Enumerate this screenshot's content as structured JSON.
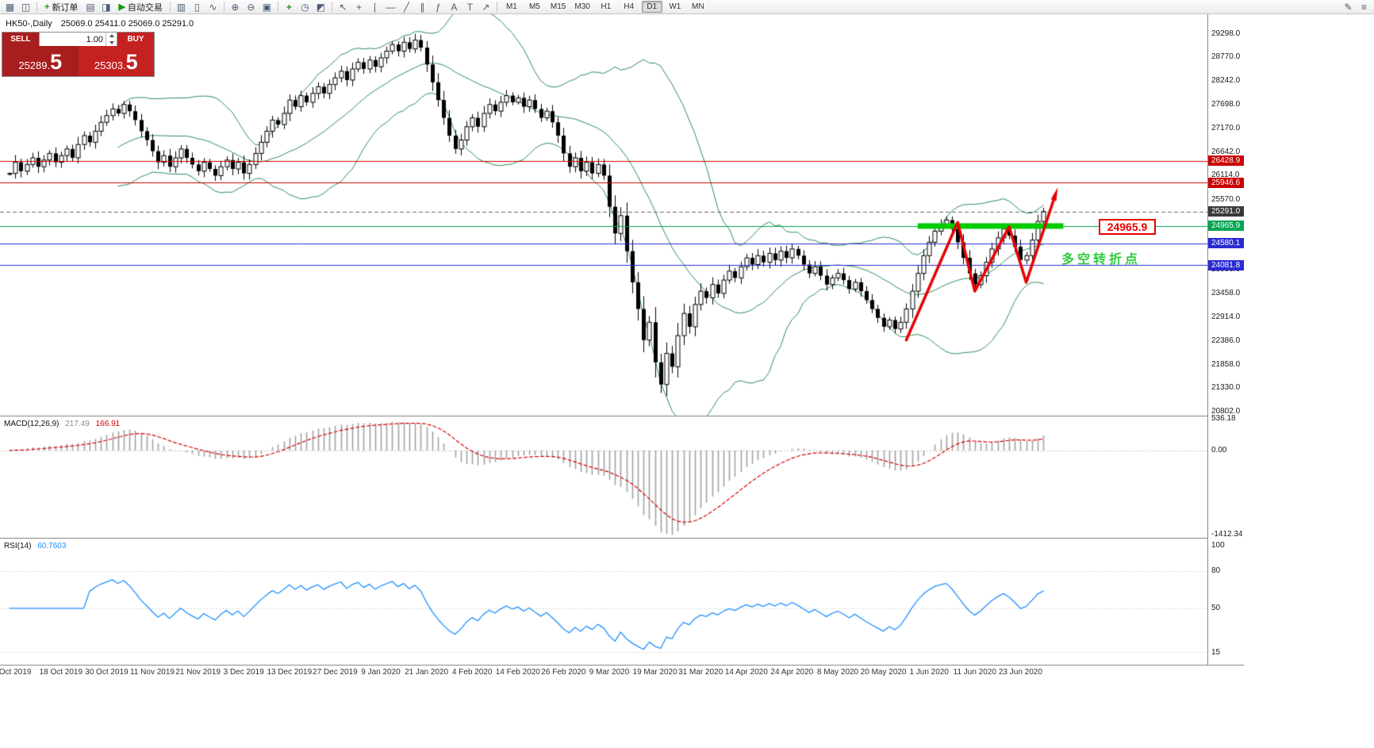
{
  "toolbar": {
    "items": [
      {
        "name": "new-chart-icon",
        "glyph": "▦"
      },
      {
        "name": "chart-profiles-icon",
        "glyph": "◫"
      },
      {
        "sep": true
      },
      {
        "name": "new-order-button",
        "glyph": "+",
        "glyph_color": "#169a16",
        "label": "新订单"
      },
      {
        "name": "market-watch-icon",
        "glyph": "▤"
      },
      {
        "name": "navigator-icon",
        "glyph": "◨"
      },
      {
        "name": "autotrading-button",
        "glyph": "▶",
        "glyph_color": "#169a16",
        "label": "自动交易"
      },
      {
        "sep": true
      },
      {
        "name": "bar-chart-icon",
        "glyph": "▥"
      },
      {
        "name": "candlestick-chart-icon",
        "glyph": "▯"
      },
      {
        "name": "line-chart-icon",
        "glyph": "∿"
      },
      {
        "sep": true
      },
      {
        "name": "zoom-in-icon",
        "glyph": "⊕"
      },
      {
        "name": "zoom-out-icon",
        "glyph": "⊖"
      },
      {
        "name": "tile-windows-icon",
        "glyph": "▣"
      },
      {
        "sep": true
      },
      {
        "name": "add-indicator-icon",
        "glyph": "+",
        "glyph_color": "#169a16"
      },
      {
        "name": "periodicity-icon",
        "glyph": "◷"
      },
      {
        "name": "templates-icon",
        "glyph": "◩"
      },
      {
        "sep": true
      },
      {
        "name": "cursor-icon",
        "glyph": "↖"
      },
      {
        "name": "crosshair-icon",
        "glyph": "+"
      },
      {
        "name": "vertical-line-icon",
        "glyph": "∣"
      },
      {
        "name": "horizontal-line-icon",
        "glyph": "―"
      },
      {
        "name": "trendline-icon",
        "glyph": "╱"
      },
      {
        "name": "channel-icon",
        "glyph": "∥"
      },
      {
        "name": "fibonacci-icon",
        "glyph": "ƒ"
      },
      {
        "name": "text-icon",
        "glyph": "A"
      },
      {
        "name": "label-icon",
        "glyph": "T"
      },
      {
        "name": "arrow-tools-icon",
        "glyph": "↗"
      },
      {
        "sep": true
      }
    ],
    "timeframes": [
      "M1",
      "M5",
      "M15",
      "M30",
      "H1",
      "H4",
      "D1",
      "W1",
      "MN"
    ],
    "active_timeframe": "D1",
    "right_items": [
      {
        "name": "edit-icon",
        "glyph": "✎"
      },
      {
        "name": "menu-icon",
        "glyph": "≡"
      }
    ]
  },
  "chart": {
    "title": "HK50-,Daily",
    "ohlc": "25069.0 25411.0 25069.0 25291.0"
  },
  "trade_panel": {
    "sell_label": "SELL",
    "buy_label": "BUY",
    "volume": "1.00",
    "sell_price_main": "25289.",
    "sell_price_big": "5",
    "buy_price_main": "25303.",
    "buy_price_big": "5",
    "sell_bg": "#a81d1d",
    "buy_bg": "#c42121"
  },
  "chart_data": {
    "type": "candlestick",
    "symbol": "HK50",
    "timeframe": "Daily",
    "last_ohlc": {
      "open": 25069.0,
      "high": 25411.0,
      "low": 25069.0,
      "close": 25291.0
    },
    "closes": [
      26150,
      26400,
      26200,
      26350,
      26500,
      26300,
      26450,
      26600,
      26400,
      26550,
      26700,
      26500,
      26800,
      27000,
      26850,
      27100,
      27300,
      27450,
      27600,
      27500,
      27700,
      27550,
      27350,
      27100,
      26900,
      26650,
      26400,
      26550,
      26300,
      26500,
      26700,
      26500,
      26350,
      26200,
      26400,
      26250,
      26100,
      26300,
      26450,
      26250,
      26400,
      26150,
      26350,
      26600,
      26850,
      27100,
      27350,
      27250,
      27500,
      27800,
      27650,
      27900,
      27750,
      27950,
      28100,
      27950,
      28150,
      28300,
      28450,
      28250,
      28500,
      28650,
      28500,
      28700,
      28550,
      28750,
      28900,
      29050,
      28900,
      29100,
      28950,
      29150,
      28980,
      28600,
      28200,
      27800,
      27400,
      27000,
      26700,
      26900,
      27200,
      27400,
      27200,
      27500,
      27700,
      27550,
      27750,
      27900,
      27750,
      27850,
      27650,
      27800,
      27600,
      27400,
      27550,
      27300,
      27000,
      26600,
      26300,
      26500,
      26200,
      26400,
      26150,
      26350,
      26100,
      25400,
      24800,
      25200,
      24400,
      23700,
      23100,
      22400,
      22800,
      21900,
      21400,
      22100,
      21800,
      22500,
      23000,
      22700,
      23200,
      23500,
      23350,
      23650,
      23450,
      23750,
      23950,
      23800,
      24050,
      24250,
      24100,
      24300,
      24150,
      24350,
      24200,
      24400,
      24250,
      24450,
      24300,
      24100,
      23900,
      24050,
      23850,
      23650,
      23800,
      23900,
      23750,
      23550,
      23700,
      23500,
      23300,
      23100,
      22900,
      22700,
      22850,
      22650,
      22800,
      23100,
      23500,
      23900,
      24300,
      24600,
      24850,
      25000,
      25100,
      24900,
      24600,
      24250,
      23900,
      23650,
      23850,
      24150,
      24450,
      24700,
      24900,
      24750,
      24500,
      24200,
      24300,
      24650,
      25069,
      25291
    ],
    "indicators": {
      "bollinger": {
        "period": 20,
        "deviation": 2,
        "color": "#2E8B57"
      },
      "macd": {
        "label": "MACD(12,26,9)",
        "value_main": "217.49",
        "value_signal": "166.91",
        "axis_labels": [
          "536.18",
          "0.00",
          "-1412.34"
        ],
        "histogram_color": "#a0a0a0",
        "signal_color": "#d40000"
      },
      "rsi": {
        "label": "RSI(14)",
        "value": "60.7603",
        "axis_labels": [
          "100",
          "80",
          "50",
          "15"
        ],
        "line_color": "#1e90ff"
      }
    },
    "price_axis": {
      "plain_labels": [
        "29298.0",
        "28770.0",
        "28242.0",
        "27698.0",
        "27170.0",
        "26642.0",
        "26114.0",
        "25570.0",
        "23986.0",
        "23458.0",
        "22914.0",
        "22386.0",
        "21858.0",
        "21330.0",
        "20802.0"
      ],
      "boxed_labels": [
        {
          "text": "26428.9",
          "bg": "#cc0000"
        },
        {
          "text": "25946.6",
          "bg": "#cc0000"
        },
        {
          "text": "25291.0",
          "bg": "#3a3a3a"
        },
        {
          "text": "24965.9",
          "bg": "#00a651"
        },
        {
          "text": "24580.1",
          "bg": "#2b2bd4"
        },
        {
          "text": "24081.8",
          "bg": "#2b2bd4"
        }
      ]
    },
    "hlines": [
      {
        "price": 26428.9,
        "color": "#cc0000"
      },
      {
        "price": 25946.6,
        "color": "#cc0000"
      },
      {
        "price": 24965.9,
        "color": "#00a651"
      },
      {
        "price": 24580.1,
        "color": "#2b2bd4"
      },
      {
        "price": 24081.8,
        "color": "#2b2bd4"
      }
    ],
    "current_price": 25291.0,
    "annotations": {
      "support_bar": {
        "price": 24965.9,
        "from_index": 159,
        "to_index": 184.5,
        "color": "#00cc00",
        "thickness": 7
      },
      "trend_arrow": {
        "color": "#e80000",
        "width": 3.5,
        "points": [
          [
            157,
            22400
          ],
          [
            166,
            25050
          ],
          [
            169,
            23500
          ],
          [
            175,
            24950
          ],
          [
            178,
            23700
          ],
          [
            183,
            25630
          ]
        ]
      },
      "price_label": {
        "text": "24965.9",
        "color": "#e80000"
      },
      "turning_text": {
        "text": "多空转折点",
        "color": "#2ecc40"
      }
    },
    "date_labels": [
      "Oct 2019",
      "18 Oct 2019",
      "30 Oct 2019",
      "11 Nov 2019",
      "21 Nov 2019",
      "3 Dec 2019",
      "13 Dec 2019",
      "27 Dec 2019",
      "9 Jan 2020",
      "21 Jan 2020",
      "4 Feb 2020",
      "14 Feb 2020",
      "26 Feb 2020",
      "9 Mar 2020",
      "19 Mar 2020",
      "31 Mar 2020",
      "14 Apr 2020",
      "24 Apr 2020",
      "8 May 2020",
      "20 May 2020",
      "1 Jun 2020",
      "11 Jun 2020",
      "23 Jun 2020"
    ]
  }
}
